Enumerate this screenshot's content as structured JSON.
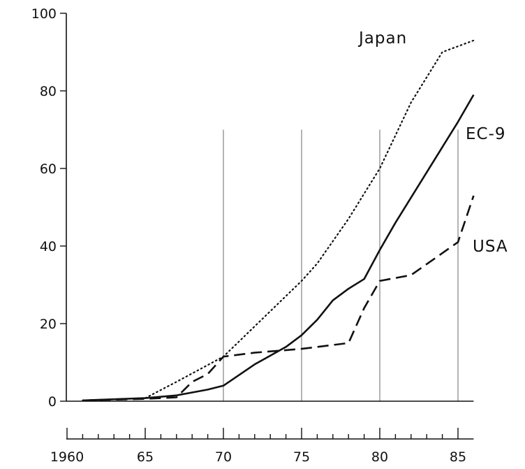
{
  "chart_data": {
    "type": "line",
    "title": "",
    "xlabel": "",
    "ylabel": "",
    "xlim": [
      1960,
      1986
    ],
    "ylim": [
      0,
      100
    ],
    "x_ticks": [
      {
        "value": 1960,
        "label": "1960"
      },
      {
        "value": 1965,
        "label": "65"
      },
      {
        "value": 1970,
        "label": "70"
      },
      {
        "value": 1975,
        "label": "75"
      },
      {
        "value": 1980,
        "label": "80"
      },
      {
        "value": 1985,
        "label": "85"
      }
    ],
    "y_ticks": [
      {
        "value": 0,
        "label": "0"
      },
      {
        "value": 20,
        "label": "20"
      },
      {
        "value": 40,
        "label": "40"
      },
      {
        "value": 60,
        "label": "60"
      },
      {
        "value": 80,
        "label": "80"
      },
      {
        "value": 100,
        "label": "100"
      }
    ],
    "reference_lines_x": [
      1970,
      1975,
      1980,
      1985
    ],
    "grid": false,
    "legend": "none",
    "series": [
      {
        "name": "Japan",
        "style": "dotted",
        "x": [
          1961,
          1965,
          1967,
          1970,
          1975,
          1976,
          1978,
          1980,
          1982,
          1984,
          1986
        ],
        "y": [
          0.2,
          0.8,
          5,
          11.5,
          31,
          35.5,
          47,
          60,
          77,
          90,
          93
        ]
      },
      {
        "name": "EC-9",
        "style": "solid",
        "x": [
          1961,
          1965,
          1967,
          1969,
          1970,
          1972,
          1974,
          1975,
          1976,
          1977,
          1978,
          1979,
          1980,
          1981,
          1985,
          1986
        ],
        "y": [
          0.2,
          0.8,
          1.5,
          3,
          4,
          9.5,
          14,
          17,
          21,
          26,
          29,
          31.5,
          39,
          46,
          72,
          79
        ]
      },
      {
        "name": "USA",
        "style": "dashed",
        "x": [
          1961,
          1965,
          1967,
          1968,
          1969,
          1970,
          1972,
          1975,
          1978,
          1979,
          1980,
          1982,
          1985,
          1986
        ],
        "y": [
          0.2,
          0.6,
          1,
          5,
          7,
          11.5,
          12.5,
          13.5,
          15,
          24,
          31,
          32.5,
          41,
          53
        ]
      }
    ]
  }
}
